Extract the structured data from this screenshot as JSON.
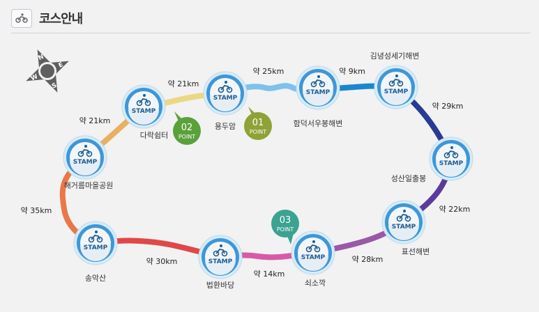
{
  "header": {
    "title": "코스안내",
    "icon": "bicycle-icon"
  },
  "compass": {
    "icon": "compass-icon",
    "letters": [
      "N",
      "E",
      "S",
      "W"
    ]
  },
  "stamp_label": "STAMP",
  "stations": [
    {
      "name": "해거름마을공원"
    },
    {
      "name": "다락쉼터"
    },
    {
      "name": "용두암"
    },
    {
      "name": "함덕서우봉해변"
    },
    {
      "name": "김녕성세기해변"
    },
    {
      "name": "성산일출봉"
    },
    {
      "name": "표선해변"
    },
    {
      "name": "쇠소깍"
    },
    {
      "name": "법환바당"
    },
    {
      "name": "송악산"
    }
  ],
  "segments": [
    {
      "from": "송악산",
      "to": "해거름마을공원",
      "distance": "약 35km",
      "color": "#e8774a"
    },
    {
      "from": "해거름마을공원",
      "to": "다락쉼터",
      "distance": "약 21km",
      "color": "#e9b063"
    },
    {
      "from": "다락쉼터",
      "to": "용두암",
      "distance": "약 21km",
      "color": "#e9d982"
    },
    {
      "from": "용두암",
      "to": "함덕서우봉해변",
      "distance": "약 25km",
      "color": "#7dc1ec"
    },
    {
      "from": "함덕서우봉해변",
      "to": "김녕성세기해변",
      "distance": "약 9km",
      "color": "#1a86d0"
    },
    {
      "from": "김녕성세기해변",
      "to": "성산일출봉",
      "distance": "약 29km",
      "color": "#283a96"
    },
    {
      "from": "성산일출봉",
      "to": "표선해변",
      "distance": "약 22km",
      "color": "#5a3b9c"
    },
    {
      "from": "표선해변",
      "to": "쇠소깍",
      "distance": "약 28km",
      "color": "#9a58a8"
    },
    {
      "from": "쇠소깍",
      "to": "법환바당",
      "distance": "약 14km",
      "color": "#d75aa8"
    },
    {
      "from": "법환바당",
      "to": "송악산",
      "distance": "약 30km",
      "color": "#e04848"
    }
  ],
  "points": [
    {
      "number": "01",
      "label": "POINT",
      "color": "#8ea235"
    },
    {
      "number": "02",
      "label": "POINT",
      "color": "#5aa13a"
    },
    {
      "number": "03",
      "label": "POINT",
      "color": "#3ca291"
    }
  ]
}
